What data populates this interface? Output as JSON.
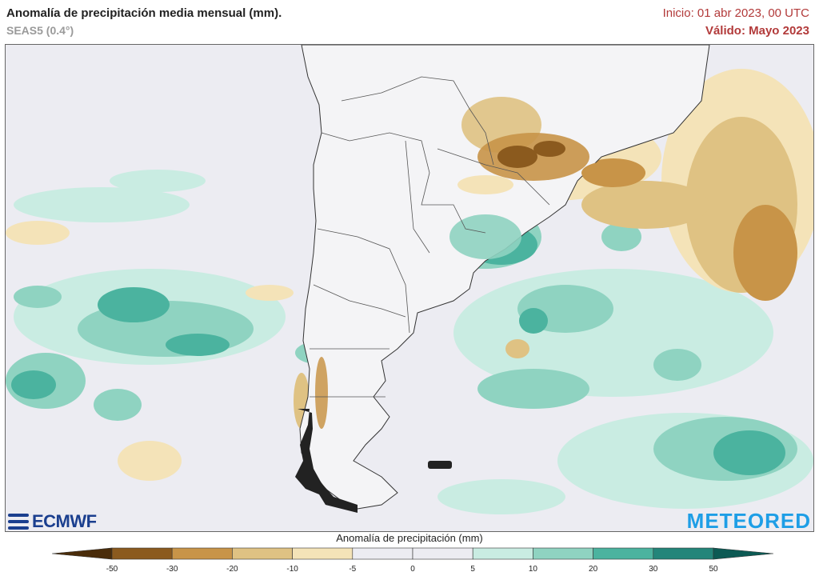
{
  "header": {
    "title": "Anomalía de precipitación media mensual (mm).",
    "subtitle": "SEAS5 (0.4°)",
    "init": "Inicio: 01 abr 2023, 00 UTC",
    "valid": "Válido: Mayo 2023"
  },
  "logos": {
    "left": "ECMWF",
    "right": "METEORED"
  },
  "legend": {
    "title": "Anomalía de precipitación (mm)",
    "ticks": [
      "-50",
      "-30",
      "-20",
      "-10",
      "-5",
      "0",
      "5",
      "10",
      "20",
      "30",
      "50"
    ],
    "colors": [
      "#4a2c0a",
      "#8b5a1e",
      "#c89448",
      "#dfc283",
      "#f4e3b8",
      "#ececf2",
      "#ececf2",
      "#c9ece2",
      "#8fd3c1",
      "#4bb39f",
      "#23857a",
      "#0c5a54"
    ]
  },
  "map": {
    "background": "#ececf2",
    "land": "#f4f4f6",
    "dry_colors": [
      "#f4e3b8",
      "#dfc283",
      "#c89448",
      "#8b5a1e"
    ],
    "wet_colors": [
      "#c9ece2",
      "#8fd3c1",
      "#4bb39f",
      "#23857a"
    ]
  }
}
